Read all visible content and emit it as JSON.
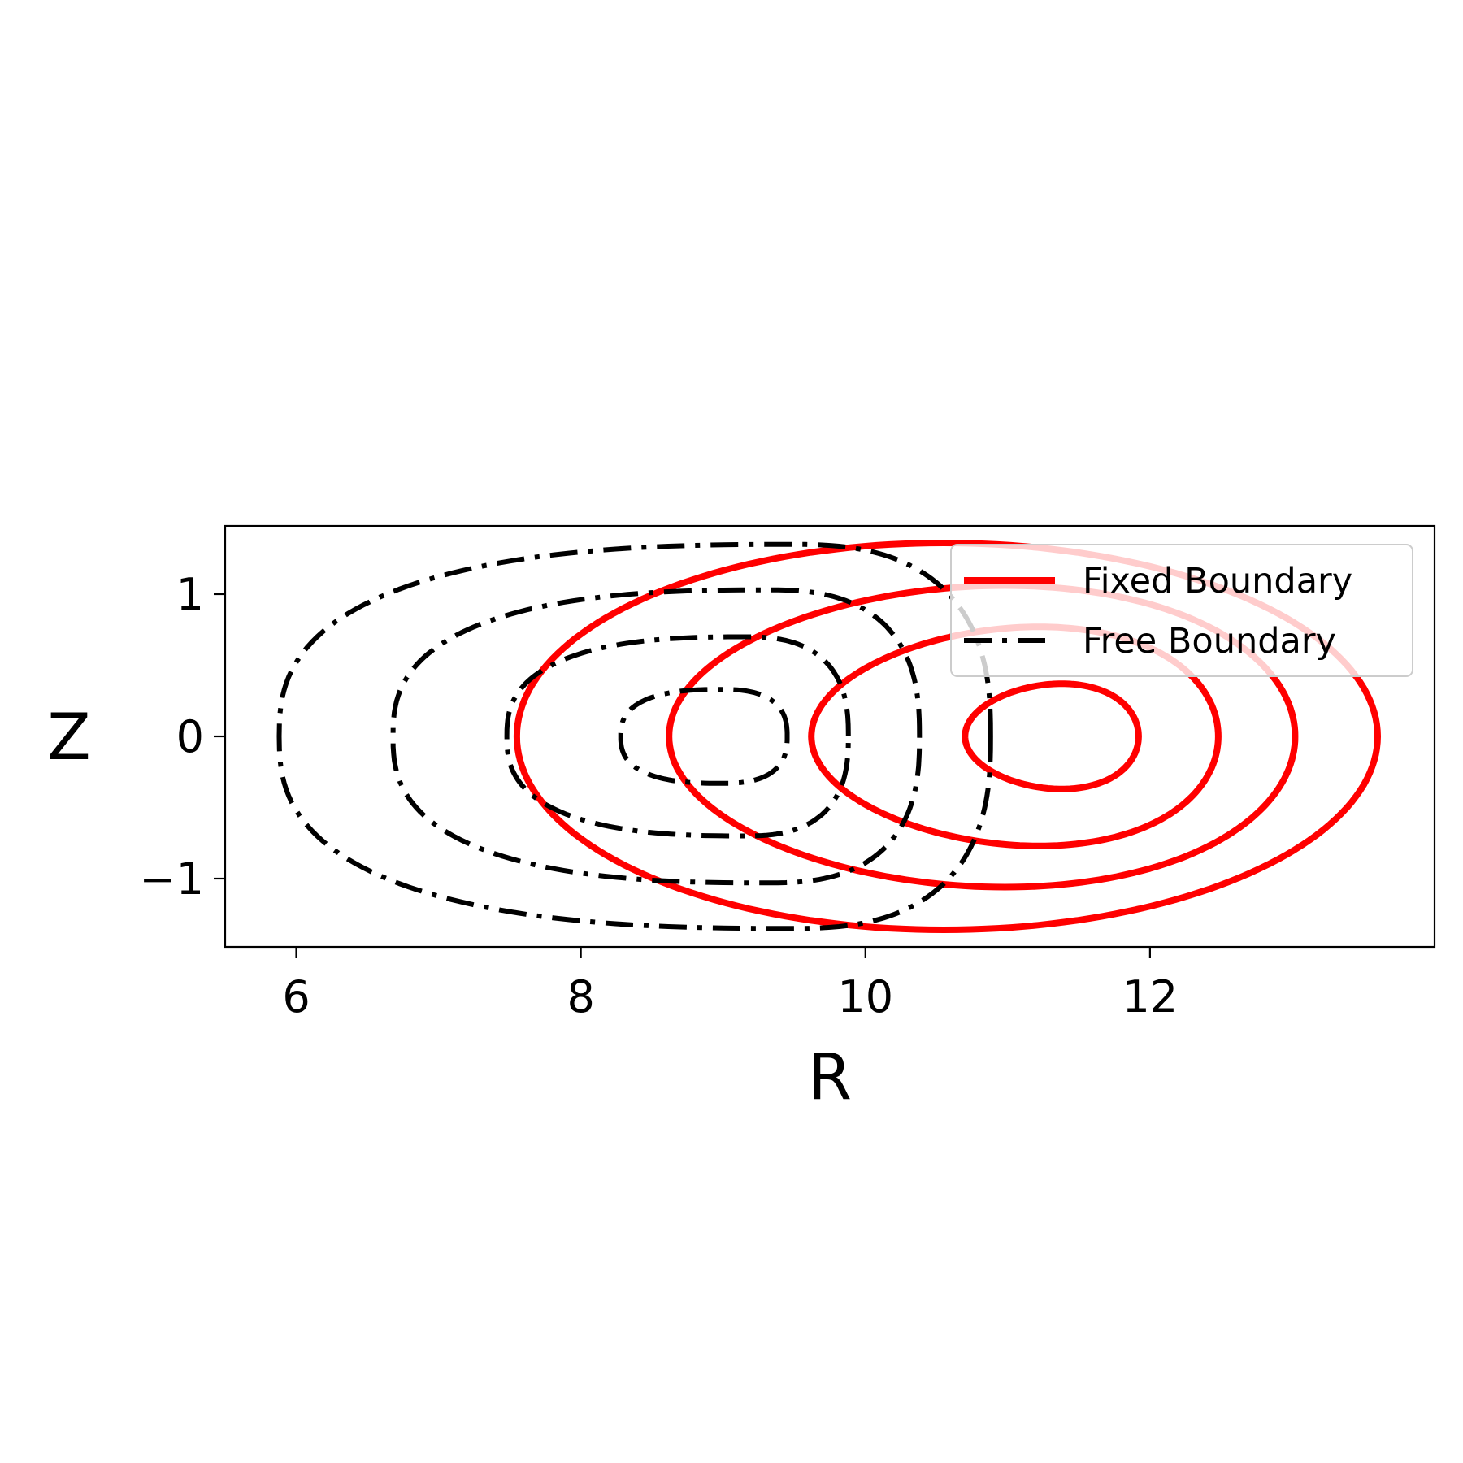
{
  "chart_data": {
    "type": "line",
    "title": "",
    "xlabel": "R",
    "ylabel": "Z",
    "xlim": [
      5.5,
      14.0
    ],
    "ylim": [
      -1.48,
      1.48
    ],
    "xticks": [
      6,
      8,
      10,
      12
    ],
    "xtick_labels": [
      "6",
      "8",
      "10",
      "12"
    ],
    "yticks": [
      -1,
      0,
      1
    ],
    "ytick_labels": [
      "−1",
      "0",
      "1"
    ],
    "grid": false,
    "legend": {
      "location": "upper-right",
      "entries": [
        "Fixed Boundary",
        "Free Boundary"
      ]
    },
    "colors": {
      "fixed": "#ff0000",
      "free": "#000000"
    },
    "series": [
      {
        "name": "Fixed Boundary",
        "color": "#ff0000",
        "style": "solid",
        "contours": [
          {
            "r_min": 7.55,
            "r_max": 13.6,
            "r_top": 10.55,
            "z_half": 1.36
          },
          {
            "r_min": 8.62,
            "r_max": 13.02,
            "r_top": 10.98,
            "z_half": 1.06
          },
          {
            "r_min": 9.62,
            "r_max": 12.48,
            "r_top": 11.22,
            "z_half": 0.77
          },
          {
            "r_min": 10.7,
            "r_max": 11.92,
            "r_top": 11.38,
            "z_half": 0.37
          }
        ]
      },
      {
        "name": "Free Boundary",
        "color": "#000000",
        "style": "dashdot",
        "contours": [
          {
            "r_min": 5.88,
            "r_max": 10.88,
            "r_top": 9.6,
            "z_half": 1.35
          },
          {
            "r_min": 6.68,
            "r_max": 10.38,
            "r_top": 9.4,
            "z_half": 1.03
          },
          {
            "r_min": 7.48,
            "r_max": 9.88,
            "r_top": 9.2,
            "z_half": 0.7
          },
          {
            "r_min": 8.28,
            "r_max": 9.45,
            "r_top": 9.0,
            "z_half": 0.33
          }
        ]
      }
    ]
  }
}
